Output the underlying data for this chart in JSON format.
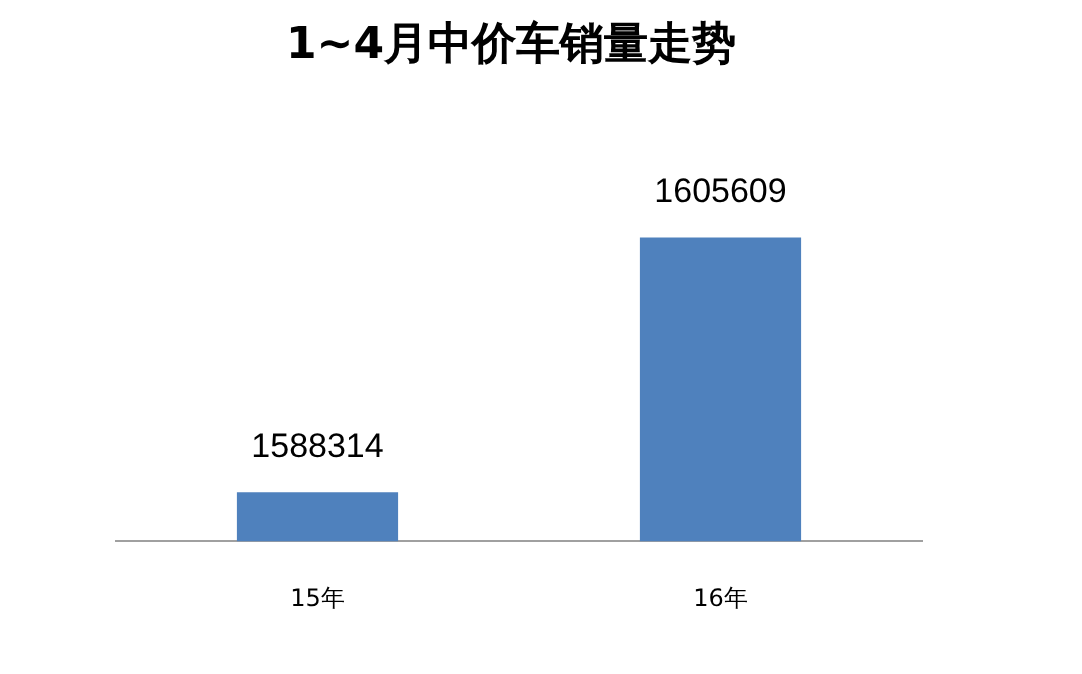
{
  "chart_data": {
    "type": "bar",
    "title": "1~4月中价车销量走势",
    "categories": [
      "15年",
      "16年"
    ],
    "values": [
      1588314,
      1605609
    ],
    "color": "#4f81bd",
    "tick_labels": "x",
    "data_labels": true,
    "legend": false,
    "grid": false
  }
}
